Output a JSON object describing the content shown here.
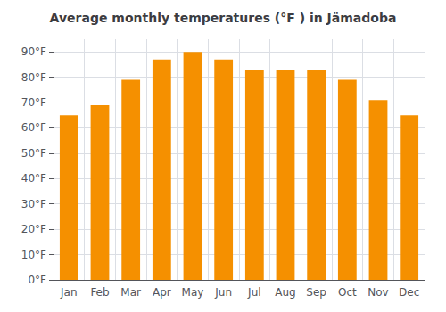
{
  "chart_data": {
    "type": "bar",
    "title": "Average monthly temperatures (°F ) in Jämadoba",
    "categories": [
      "Jan",
      "Feb",
      "Mar",
      "Apr",
      "May",
      "Jun",
      "Jul",
      "Aug",
      "Sep",
      "Oct",
      "Nov",
      "Dec"
    ],
    "values": [
      65,
      69,
      79,
      87,
      90,
      87,
      83,
      83,
      83,
      79,
      71,
      65
    ],
    "color": "#F59000",
    "ylim": [
      0,
      95
    ],
    "yticks": [
      {
        "value": 0,
        "label": "0°F"
      },
      {
        "value": 10,
        "label": "10°F"
      },
      {
        "value": 20,
        "label": "20°F"
      },
      {
        "value": 30,
        "label": "30°F"
      },
      {
        "value": 40,
        "label": "40°F"
      },
      {
        "value": 50,
        "label": "50°F"
      },
      {
        "value": 60,
        "label": "60°F"
      },
      {
        "value": 70,
        "label": "70°F"
      },
      {
        "value": 80,
        "label": "80°F"
      },
      {
        "value": 90,
        "label": "90°F"
      }
    ],
    "grid": true
  }
}
